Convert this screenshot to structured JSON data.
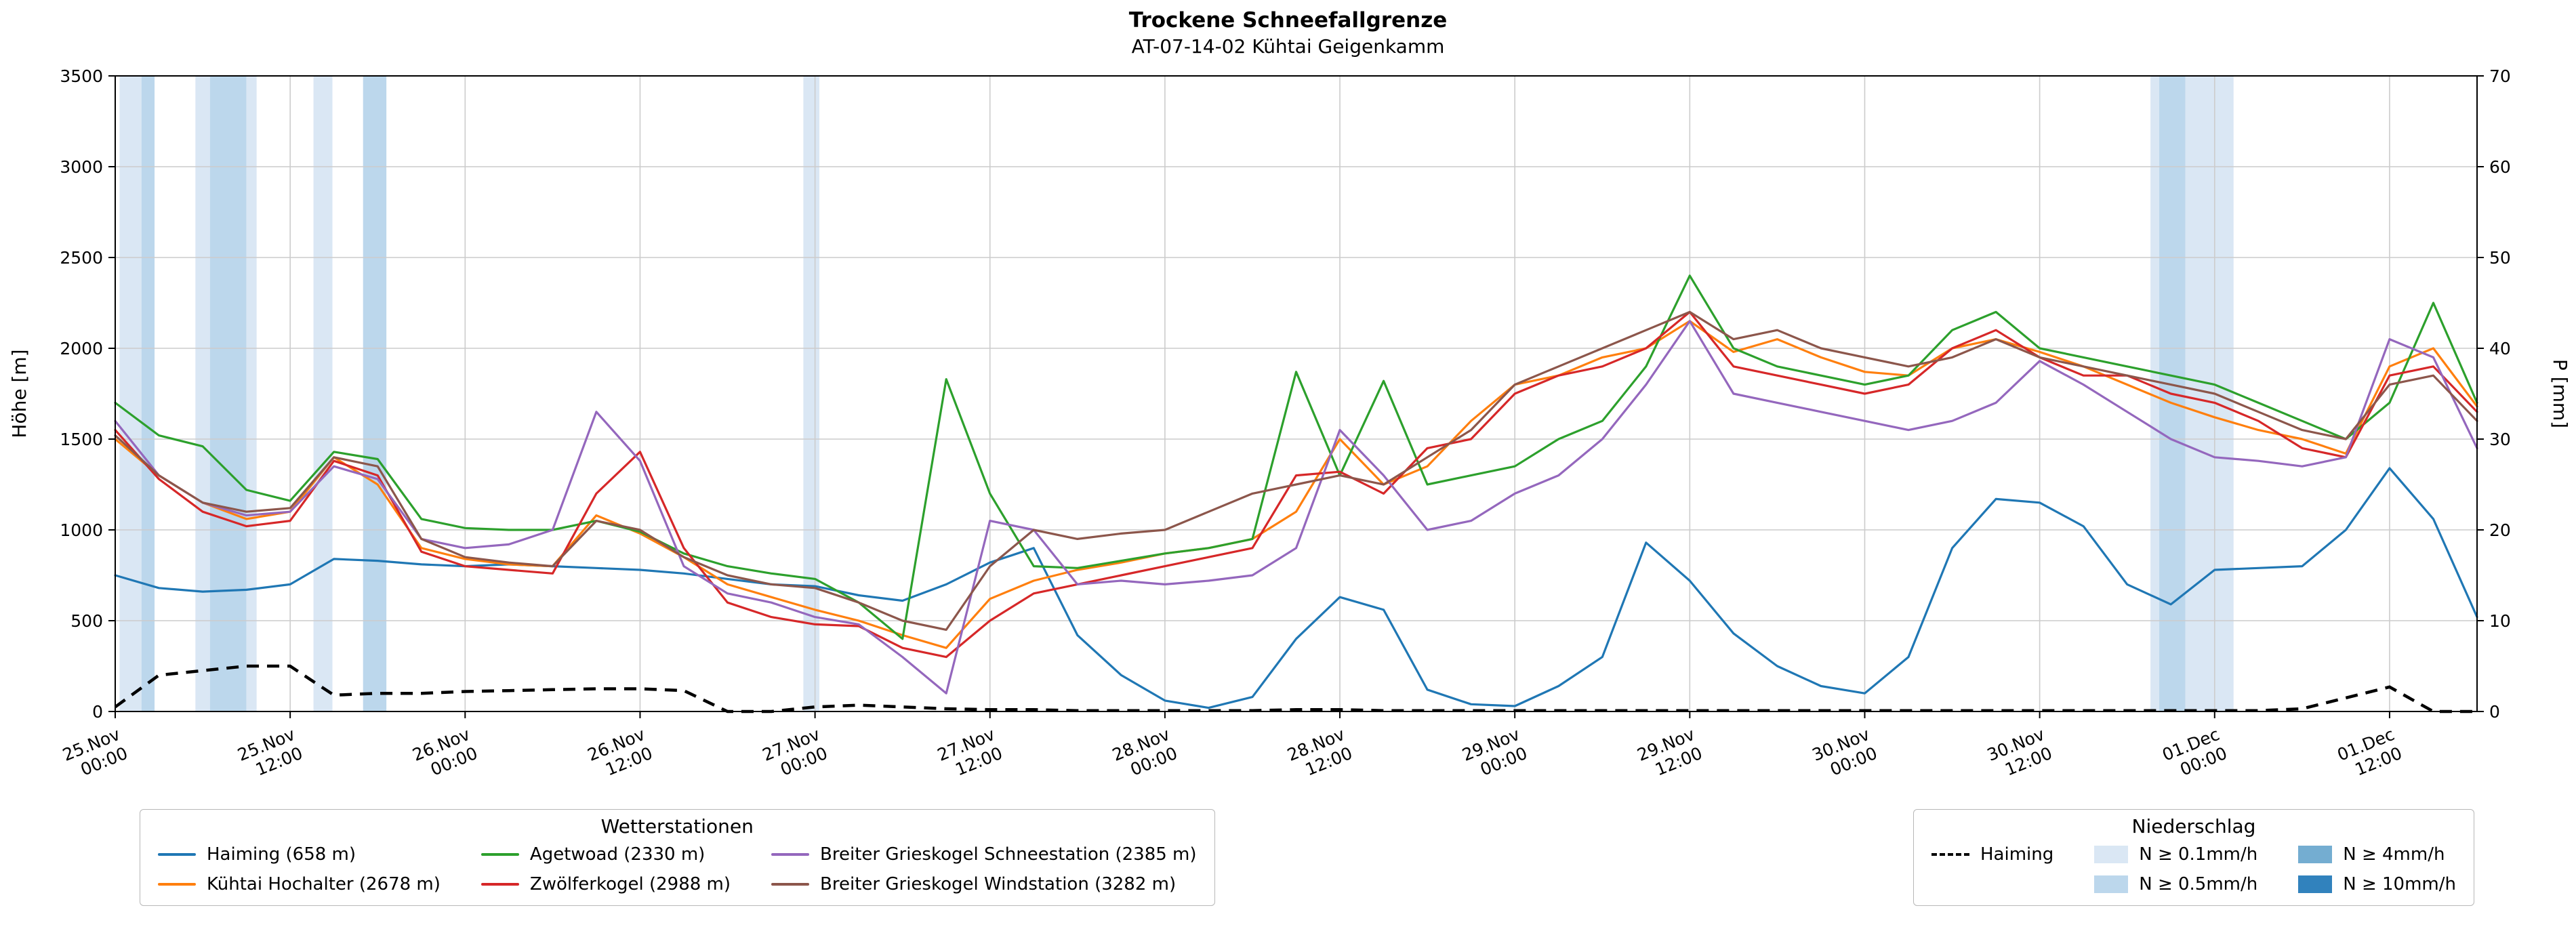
{
  "title": "Trockene Schneefallgrenze",
  "subtitle": "AT-07-14-02 Kühtai Geigenkamm",
  "axes": {
    "y_left_label": "Höhe [m]",
    "y_right_label": "P [mm]"
  },
  "legend_stations": {
    "title": "Wetterstationen"
  },
  "legend_precip": {
    "title": "Niederschlag",
    "dashed_label": "Haiming",
    "patches": [
      {
        "label": "N ≥ 0.1mm/h",
        "level": "0.1"
      },
      {
        "label": "N ≥ 0.5mm/h",
        "level": "0.5"
      },
      {
        "label": "N ≥ 4mm/h",
        "level": "4"
      },
      {
        "label": "N ≥ 10mm/h",
        "level": "10"
      }
    ]
  },
  "chart_data": {
    "type": "line",
    "title": "Trockene Schneefallgrenze",
    "subtitle": "AT-07-14-02 Kühtai Geigenkamm",
    "xlabel": "",
    "ylabel_left": "Höhe [m]",
    "ylabel_right": "P [mm]",
    "x_unit": "hours since 25.Nov 00:00",
    "x_range": [
      0,
      162
    ],
    "y_left_range": [
      0,
      3500
    ],
    "y_right_range": [
      0,
      70
    ],
    "y_left_ticks": [
      0,
      500,
      1000,
      1500,
      2000,
      2500,
      3000,
      3500
    ],
    "y_right_ticks": [
      0,
      10,
      20,
      30,
      40,
      50,
      60,
      70
    ],
    "grid": true,
    "x_ticks": [
      {
        "h": 0,
        "line1": "25.Nov",
        "line2": "00:00"
      },
      {
        "h": 12,
        "line1": "25.Nov",
        "line2": "12:00"
      },
      {
        "h": 24,
        "line1": "26.Nov",
        "line2": "00:00"
      },
      {
        "h": 36,
        "line1": "26.Nov",
        "line2": "12:00"
      },
      {
        "h": 48,
        "line1": "27.Nov",
        "line2": "00:00"
      },
      {
        "h": 60,
        "line1": "27.Nov",
        "line2": "12:00"
      },
      {
        "h": 72,
        "line1": "28.Nov",
        "line2": "00:00"
      },
      {
        "h": 84,
        "line1": "28.Nov",
        "line2": "12:00"
      },
      {
        "h": 96,
        "line1": "29.Nov",
        "line2": "00:00"
      },
      {
        "h": 108,
        "line1": "29.Nov",
        "line2": "12:00"
      },
      {
        "h": 120,
        "line1": "30.Nov",
        "line2": "00:00"
      },
      {
        "h": 132,
        "line1": "30.Nov",
        "line2": "12:00"
      },
      {
        "h": 144,
        "line1": "01.Dec",
        "line2": "00:00"
      },
      {
        "h": 156,
        "line1": "01.Dec",
        "line2": "12:00"
      }
    ],
    "x": [
      0,
      3,
      6,
      9,
      12,
      15,
      18,
      21,
      24,
      27,
      30,
      33,
      36,
      39,
      42,
      45,
      48,
      51,
      54,
      57,
      60,
      63,
      66,
      69,
      72,
      75,
      78,
      81,
      84,
      87,
      90,
      93,
      96,
      99,
      102,
      105,
      108,
      111,
      114,
      117,
      120,
      123,
      126,
      129,
      132,
      135,
      138,
      141,
      144,
      147,
      150,
      153,
      156,
      159,
      162
    ],
    "series": [
      {
        "id": "haiming",
        "name": "Haiming (658 m)",
        "color": "#1f77b4",
        "values": [
          750,
          680,
          660,
          670,
          700,
          840,
          830,
          810,
          800,
          810,
          800,
          790,
          780,
          760,
          730,
          700,
          690,
          640,
          610,
          700,
          820,
          900,
          420,
          200,
          60,
          20,
          80,
          400,
          630,
          560,
          120,
          40,
          30,
          140,
          300,
          930,
          720,
          430,
          250,
          140,
          100,
          300,
          900,
          1170,
          1150,
          1020,
          700,
          590,
          780,
          790,
          800,
          1000,
          1340,
          1060,
          520
        ]
      },
      {
        "id": "kuehtai-hochalter",
        "name": "Kühtai Hochalter (2678 m)",
        "color": "#ff7f0e",
        "values": [
          1500,
          1300,
          1150,
          1060,
          1100,
          1400,
          1250,
          900,
          840,
          810,
          800,
          1080,
          980,
          850,
          700,
          630,
          560,
          500,
          420,
          350,
          620,
          720,
          780,
          820,
          870,
          900,
          950,
          1100,
          1500,
          1250,
          1350,
          1600,
          1800,
          1850,
          1950,
          2000,
          2150,
          1980,
          2050,
          1950,
          1870,
          1850,
          2000,
          2050,
          1980,
          1900,
          1800,
          1700,
          1620,
          1550,
          1500,
          1420,
          1900,
          2000,
          1680
        ]
      },
      {
        "id": "agetwoad",
        "name": "Agetwoad (2330 m)",
        "color": "#2ca02c",
        "values": [
          1700,
          1520,
          1460,
          1220,
          1160,
          1430,
          1390,
          1060,
          1010,
          1000,
          1000,
          1050,
          990,
          870,
          800,
          760,
          730,
          600,
          400,
          1830,
          1200,
          800,
          790,
          830,
          870,
          900,
          950,
          1870,
          1300,
          1820,
          1250,
          1300,
          1350,
          1500,
          1600,
          1900,
          2400,
          2000,
          1900,
          1850,
          1800,
          1850,
          2100,
          2200,
          2000,
          1950,
          1900,
          1850,
          1800,
          1700,
          1600,
          1500,
          1700,
          2250,
          1700
        ]
      },
      {
        "id": "zwoelferkogel",
        "name": "Zwölferkogel (2988 m)",
        "color": "#d62728",
        "values": [
          1550,
          1280,
          1100,
          1020,
          1050,
          1380,
          1300,
          880,
          800,
          780,
          760,
          1200,
          1430,
          900,
          600,
          520,
          480,
          470,
          350,
          300,
          500,
          650,
          700,
          750,
          800,
          850,
          900,
          1300,
          1320,
          1200,
          1450,
          1500,
          1750,
          1850,
          1900,
          2000,
          2200,
          1900,
          1850,
          1800,
          1750,
          1800,
          2000,
          2100,
          1950,
          1850,
          1850,
          1750,
          1700,
          1600,
          1450,
          1400,
          1850,
          1900,
          1650
        ]
      },
      {
        "id": "bg-schneestation",
        "name": "Breiter Grieskogel Schneestation (2385 m)",
        "color": "#9467bd",
        "values": [
          1600,
          1300,
          1150,
          1080,
          1100,
          1350,
          1280,
          950,
          900,
          920,
          1000,
          1650,
          1380,
          800,
          650,
          600,
          520,
          480,
          300,
          100,
          1050,
          1000,
          700,
          720,
          700,
          720,
          750,
          900,
          1550,
          1300,
          1000,
          1050,
          1200,
          1300,
          1500,
          1800,
          2150,
          1750,
          1700,
          1650,
          1600,
          1550,
          1600,
          1700,
          1930,
          1800,
          1650,
          1500,
          1400,
          1380,
          1350,
          1400,
          2050,
          1950,
          1450
        ]
      },
      {
        "id": "bg-windstation",
        "name": "Breiter Grieskogel Windstation (3282 m)",
        "color": "#8c564b",
        "values": [
          1520,
          1300,
          1150,
          1100,
          1120,
          1400,
          1350,
          950,
          850,
          820,
          800,
          1050,
          1000,
          850,
          750,
          700,
          680,
          600,
          500,
          450,
          800,
          1000,
          950,
          980,
          1000,
          1100,
          1200,
          1250,
          1300,
          1250,
          1400,
          1550,
          1800,
          1900,
          2000,
          2100,
          2200,
          2050,
          2100,
          2000,
          1950,
          1900,
          1950,
          2050,
          1950,
          1900,
          1850,
          1800,
          1750,
          1650,
          1550,
          1500,
          1800,
          1850,
          1600
        ]
      }
    ],
    "precip_line": {
      "name": "Haiming",
      "axis": "right",
      "color": "#000000",
      "dashed": true,
      "values": [
        0.5,
        4,
        4.5,
        5,
        5,
        1.8,
        2,
        2,
        2.2,
        2.3,
        2.4,
        2.5,
        2.5,
        2.3,
        0,
        0,
        0.5,
        0.7,
        0.5,
        0.3,
        0.2,
        0.2,
        0.1,
        0.1,
        0.1,
        0.1,
        0.1,
        0.2,
        0.2,
        0.1,
        0.1,
        0.1,
        0.1,
        0.1,
        0.1,
        0.1,
        0.1,
        0.1,
        0.1,
        0.1,
        0.1,
        0.1,
        0.1,
        0.1,
        0.1,
        0.1,
        0.1,
        0.1,
        0.1,
        0.1,
        0.3,
        1.5,
        2.7,
        0,
        0
      ]
    },
    "band_colors": {
      "0.1": "#dae7f4",
      "0.5": "#bcd7ec",
      "4": "#74add1",
      "10": "#3182bd"
    },
    "precip_bands": [
      {
        "start": 0.3,
        "end": 1.8,
        "level": "0.1"
      },
      {
        "start": 1.8,
        "end": 2.7,
        "level": "0.5"
      },
      {
        "start": 5.5,
        "end": 6.5,
        "level": "0.1"
      },
      {
        "start": 6.5,
        "end": 9.0,
        "level": "0.5"
      },
      {
        "start": 9.0,
        "end": 9.7,
        "level": "0.1"
      },
      {
        "start": 13.6,
        "end": 14.9,
        "level": "0.1"
      },
      {
        "start": 17.0,
        "end": 18.6,
        "level": "0.5"
      },
      {
        "start": 47.2,
        "end": 48.3,
        "level": "0.1"
      },
      {
        "start": 139.6,
        "end": 140.2,
        "level": "0.1"
      },
      {
        "start": 140.2,
        "end": 142.0,
        "level": "0.5"
      },
      {
        "start": 142.0,
        "end": 145.3,
        "level": "0.1"
      }
    ]
  }
}
